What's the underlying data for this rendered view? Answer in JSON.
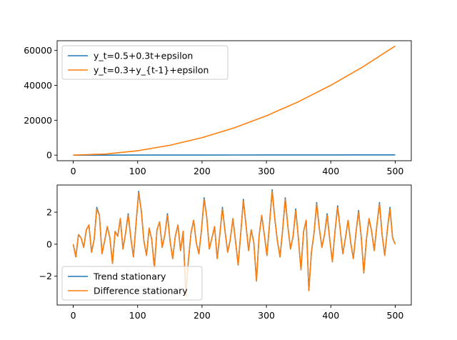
{
  "chart_data": [
    {
      "type": "line",
      "title": "",
      "xlabel": "",
      "ylabel": "",
      "xlim": [
        -25,
        525
      ],
      "ylim": [
        -3200,
        65600
      ],
      "xticks": [
        0,
        100,
        200,
        300,
        400,
        500
      ],
      "yticks": [
        0,
        20000,
        40000,
        60000
      ],
      "legend_position": "top-left",
      "x_range": [
        0,
        500
      ],
      "series": [
        {
          "name": "y_t=0.5+0.3t+epsilon",
          "color": "#1f77b4",
          "x": [
            0,
            50,
            100,
            150,
            200,
            250,
            300,
            350,
            400,
            450,
            500
          ],
          "values": [
            0.5,
            15.5,
            30.5,
            45.5,
            60.5,
            75.5,
            90.5,
            105.5,
            120.5,
            135.5,
            150.5
          ]
        },
        {
          "name": "y_t=0.3+y_{t-1}+epsilon",
          "color": "#ff7f0e",
          "x": [
            0,
            50,
            100,
            150,
            200,
            250,
            300,
            350,
            400,
            450,
            500
          ],
          "values": [
            0,
            630,
            2500,
            5650,
            10000,
            15650,
            22550,
            30650,
            40050,
            50650,
            62550
          ]
        }
      ]
    },
    {
      "type": "line",
      "title": "",
      "xlabel": "",
      "ylabel": "",
      "xlim": [
        -25,
        525
      ],
      "ylim": [
        -3.8,
        3.7
      ],
      "xticks": [
        0,
        100,
        200,
        300,
        400,
        500
      ],
      "yticks": [
        -2,
        0,
        2
      ],
      "legend_position": "bottom-left",
      "x_range": [
        0,
        500
      ],
      "series": [
        {
          "name": "Trend stationary",
          "color": "#1f77b4",
          "values": [
            0.0,
            -0.8,
            0.6,
            0.4,
            -0.2,
            0.9,
            1.2,
            -0.5,
            0.3,
            2.3,
            1.8,
            -0.6,
            0.2,
            1.1,
            0.4,
            -1.2,
            0.8,
            0.5,
            1.6,
            -0.3,
            0.7,
            1.9,
            0.4,
            -0.8,
            1.3,
            3.3,
            2.1,
            0.2,
            -0.7,
            1.0,
            0.3,
            -1.5,
            0.9,
            1.4,
            -0.2,
            0.6,
            1.9,
            0.2,
            -0.9,
            0.5,
            1.2,
            -0.4,
            0.8,
            -3.2,
            -1.0,
            0.7,
            1.5,
            0.1,
            -0.6,
            0.9,
            2.9,
            1.7,
            -0.3,
            0.4,
            1.1,
            -0.9,
            0.6,
            2.3,
            0.8,
            -0.5,
            0.3,
            1.6,
            0.2,
            -1.3,
            0.7,
            2.8,
            1.2,
            -0.4,
            0.9,
            0.1,
            -2.3,
            0.5,
            1.8,
            0.6,
            -0.7,
            1.3,
            3.4,
            1.6,
            0.2,
            -0.8,
            0.9,
            2.9,
            1.1,
            -0.3,
            0.5,
            2.2,
            0.4,
            -1.6,
            0.8,
            1.5,
            -2.9,
            -0.5,
            0.7,
            2.6,
            1.0,
            -0.2,
            0.6,
            1.9,
            0.3,
            -1.1,
            0.8,
            2.4,
            0.9,
            -0.6,
            0.4,
            1.5,
            0.1,
            -0.9,
            0.7,
            2.1,
            0.5,
            -1.8,
            0.3,
            1.6,
            0.8,
            -0.4,
            1.2,
            2.6,
            0.6,
            -0.7,
            0.9,
            2.3,
            0.4,
            0.0
          ]
        },
        {
          "name": "Difference stationary",
          "color": "#ff7f0e",
          "values": [
            0.0,
            -0.8,
            0.6,
            0.4,
            -0.2,
            0.9,
            1.2,
            -0.5,
            0.3,
            2.2,
            1.8,
            -0.6,
            0.2,
            1.1,
            0.4,
            -1.2,
            0.8,
            0.5,
            1.6,
            -0.3,
            0.7,
            1.8,
            0.4,
            -0.8,
            1.3,
            3.2,
            2.1,
            0.2,
            -0.7,
            1.0,
            0.3,
            -1.5,
            0.9,
            1.4,
            -0.2,
            0.6,
            1.8,
            0.2,
            -0.9,
            0.5,
            1.2,
            -0.4,
            0.8,
            -3.2,
            -1.0,
            0.7,
            1.5,
            0.1,
            -0.6,
            0.9,
            2.8,
            1.7,
            -0.3,
            0.4,
            1.1,
            -0.9,
            0.6,
            2.2,
            0.8,
            -0.5,
            0.3,
            1.6,
            0.2,
            -1.3,
            0.7,
            2.7,
            1.2,
            -0.4,
            0.9,
            0.1,
            -2.3,
            0.5,
            1.8,
            0.6,
            -0.7,
            1.3,
            3.3,
            1.6,
            0.2,
            -0.8,
            0.9,
            2.8,
            1.1,
            -0.3,
            0.5,
            2.1,
            0.4,
            -1.6,
            0.8,
            1.5,
            -2.9,
            -0.5,
            0.7,
            2.5,
            1.0,
            -0.2,
            0.6,
            1.8,
            0.3,
            -1.1,
            0.8,
            2.3,
            0.9,
            -0.6,
            0.4,
            1.5,
            0.1,
            -0.9,
            0.7,
            2.0,
            0.5,
            -1.8,
            0.3,
            1.6,
            0.8,
            -0.4,
            1.2,
            2.5,
            0.6,
            -0.7,
            0.9,
            2.2,
            0.4,
            0.0
          ]
        }
      ]
    }
  ]
}
